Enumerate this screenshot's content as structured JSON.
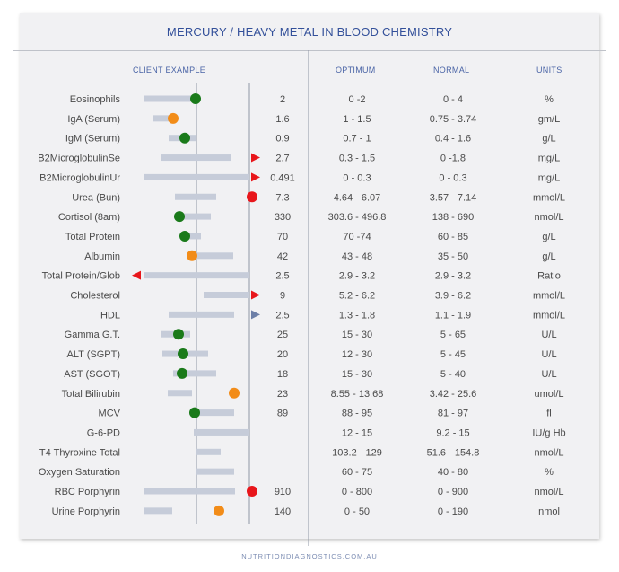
{
  "title": "MERCURY / HEAVY METAL IN BLOOD CHEMISTRY",
  "headers": {
    "client": "CLIENT EXAMPLE",
    "optimum": "OPTIMUM",
    "normal": "NORMAL",
    "units": "UNITS"
  },
  "footer": "NUTRITIONDIAGNOSTICS.COM.AU",
  "colors": {
    "green": "#1a7a1a",
    "orange": "#f28c18",
    "red": "#e8161b",
    "blue_arrow": "#6d7fa7",
    "bar": "#c6ccd9",
    "text": "#4a4a4a",
    "title": "#33509a"
  },
  "chart_data": {
    "type": "table",
    "rows": [
      {
        "name": "Eosinophils",
        "value": "2",
        "optimum": "0 -2",
        "normal": "0 - 4",
        "units": "%",
        "status": "green"
      },
      {
        "name": "IgA (Serum)",
        "value": "1.6",
        "optimum": "1 - 1.5",
        "normal": "0.75 - 3.74",
        "units": "gm/L",
        "status": "orange"
      },
      {
        "name": "IgM (Serum)",
        "value": "0.9",
        "optimum": "0.7 - 1",
        "normal": "0.4 - 1.6",
        "units": "g/L",
        "status": "green"
      },
      {
        "name": "B2MicroglobulinSe",
        "value": "2.7",
        "optimum": "0.3 - 1.5",
        "normal": "0 -1.8",
        "units": "mg/L",
        "status": "red-arrow-right"
      },
      {
        "name": "B2MicroglobulinUr",
        "value": "0.491",
        "optimum": "0 - 0.3",
        "normal": "0 - 0.3",
        "units": "mg/L",
        "status": "red-arrow-right"
      },
      {
        "name": "Urea (Bun)",
        "value": "7.3",
        "optimum": "4.64 - 6.07",
        "normal": "3.57 - 7.14",
        "units": "mmol/L",
        "status": "red"
      },
      {
        "name": "Cortisol (8am)",
        "value": "330",
        "optimum": "303.6 - 496.8",
        "normal": "138 - 690",
        "units": "nmol/L",
        "status": "green"
      },
      {
        "name": "Total Protein",
        "value": "70",
        "optimum": "70 -74",
        "normal": "60 - 85",
        "units": "g/L",
        "status": "green"
      },
      {
        "name": "Albumin",
        "value": "42",
        "optimum": "43 - 48",
        "normal": "35 - 50",
        "units": "g/L",
        "status": "orange"
      },
      {
        "name": "Total Protein/Glob",
        "value": "2.5",
        "optimum": "2.9 - 3.2",
        "normal": "2.9 - 3.2",
        "units": "Ratio",
        "status": "red-arrow-left"
      },
      {
        "name": "Cholesterol",
        "value": "9",
        "optimum": "5.2 - 6.2",
        "normal": "3.9 - 6.2",
        "units": "mmol/L",
        "status": "red-arrow-right"
      },
      {
        "name": "HDL",
        "value": "2.5",
        "optimum": "1.3 - 1.8",
        "normal": "1.1 - 1.9",
        "units": "mmol/L",
        "status": "blue-arrow-right"
      },
      {
        "name": "Gamma G.T.",
        "value": "25",
        "optimum": "15 - 30",
        "normal": "5 - 65",
        "units": "U/L",
        "status": "green"
      },
      {
        "name": "ALT (SGPT)",
        "value": "20",
        "optimum": "12 - 30",
        "normal": "5 - 45",
        "units": "U/L",
        "status": "green"
      },
      {
        "name": "AST (SGOT)",
        "value": "18",
        "optimum": "15 - 30",
        "normal": "5 - 40",
        "units": "U/L",
        "status": "green"
      },
      {
        "name": "Total Bilirubin",
        "value": "23",
        "optimum": "8.55 - 13.68",
        "normal": "3.42 - 25.6",
        "units": "umol/L",
        "status": "orange"
      },
      {
        "name": "MCV",
        "value": "89",
        "optimum": "88 - 95",
        "normal": "81 - 97",
        "units": "fl",
        "status": "green"
      },
      {
        "name": "G-6-PD",
        "value": "",
        "optimum": "12 - 15",
        "normal": "9.2 - 15",
        "units": "IU/g Hb",
        "status": "none"
      },
      {
        "name": "T4 Thyroxine Total",
        "value": "",
        "optimum": "103.2 - 129",
        "normal": "51.6 - 154.8",
        "units": "nmol/L",
        "status": "none"
      },
      {
        "name": "Oxygen Saturation",
        "value": "",
        "optimum": "60 - 75",
        "normal": "40 - 80",
        "units": "%",
        "status": "none"
      },
      {
        "name": "RBC Porphyrin",
        "value": "910",
        "optimum": "0 - 800",
        "normal": "0 - 900",
        "units": "nmol/L",
        "status": "red"
      },
      {
        "name": "Urine Porphyrin",
        "value": "140",
        "optimum": "0 - 50",
        "normal": "0 - 190",
        "units": "nmol",
        "status": "orange"
      }
    ]
  }
}
